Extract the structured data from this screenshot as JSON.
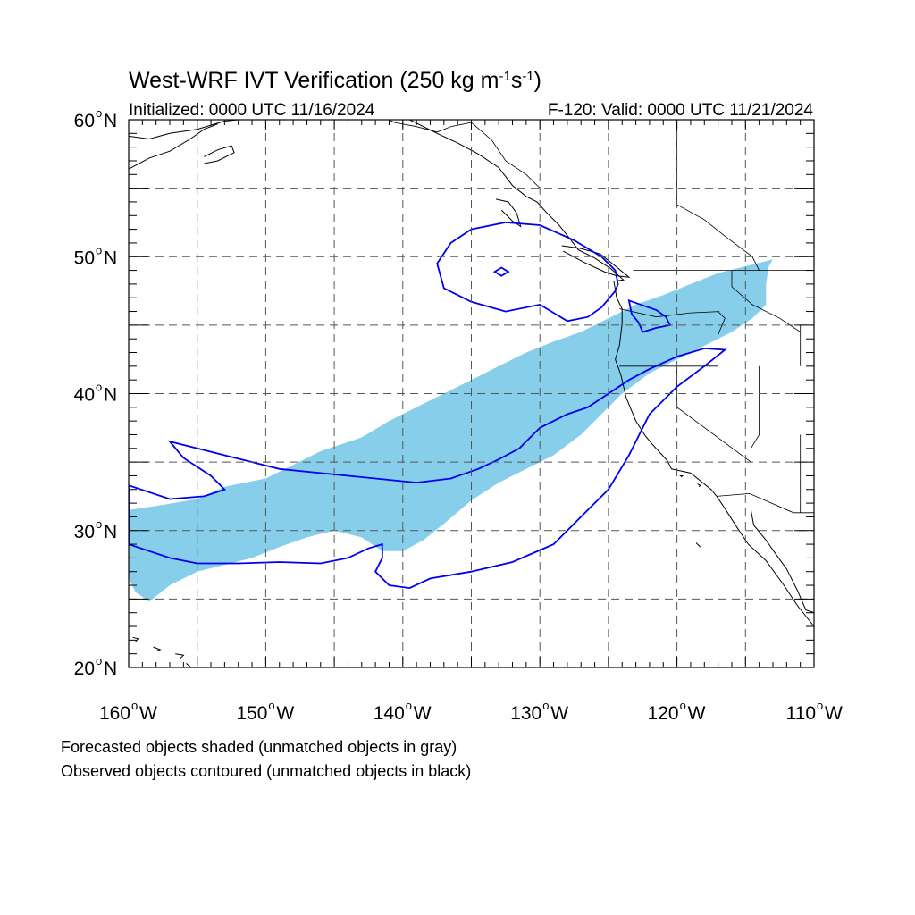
{
  "title": {
    "text": "West-WRF IVT Verification (250 kg m",
    "sup1": "-1",
    "mid": "s",
    "sup2": "-1",
    "end": ")"
  },
  "subtitle_left": "Initialized: 0000 UTC 11/16/2024",
  "subtitle_right": "F-120: Valid: 0000 UTC 11/21/2024",
  "lat_labels": [
    "60",
    "50",
    "40",
    "30",
    "20"
  ],
  "lat_suffix": "N",
  "lon_labels": [
    "160",
    "150",
    "140",
    "130",
    "120",
    "110"
  ],
  "lon_suffix": "W",
  "degree_symbol": "o",
  "caption_line1": "Forecasted objects shaded (unmatched objects in gray)",
  "caption_line2": "Observed objects contoured (unmatched objects in black)",
  "colors": {
    "forecast_fill": "#87ceeb",
    "observed_contour": "#0000ee",
    "grid": "#555555",
    "coastline": "#000000"
  },
  "map": {
    "projection": "equirectangular",
    "lon_range": [
      -160,
      -110
    ],
    "lat_range": [
      20,
      60
    ],
    "grid_spacing_deg": 5,
    "forecast_object": [
      [
        -160,
        31.5
      ],
      [
        -158,
        31.8
      ],
      [
        -155,
        32.3
      ],
      [
        -153,
        33.2
      ],
      [
        -150,
        33.8
      ],
      [
        -148,
        34.8
      ],
      [
        -146,
        35.8
      ],
      [
        -143,
        36.8
      ],
      [
        -141,
        38
      ],
      [
        -139,
        39
      ],
      [
        -137,
        40
      ],
      [
        -135,
        41
      ],
      [
        -133,
        42
      ],
      [
        -131,
        43
      ],
      [
        -129,
        43.8
      ],
      [
        -127,
        44.5
      ],
      [
        -125,
        45.5
      ],
      [
        -123,
        46.5
      ],
      [
        -121,
        47.2
      ],
      [
        -119,
        48
      ],
      [
        -117,
        48.8
      ],
      [
        -115,
        49.3
      ],
      [
        -113,
        49.8
      ],
      [
        -113.3,
        49.3
      ],
      [
        -113.5,
        48
      ],
      [
        -113.5,
        46.5
      ],
      [
        -114.5,
        45.5
      ],
      [
        -116,
        44.5
      ],
      [
        -118,
        43.5
      ],
      [
        -120,
        42.5
      ],
      [
        -122,
        41.5
      ],
      [
        -124,
        40
      ],
      [
        -125.5,
        38.5
      ],
      [
        -127,
        37
      ],
      [
        -129,
        35.5
      ],
      [
        -131,
        34.5
      ],
      [
        -133,
        33.5
      ],
      [
        -135,
        32.2
      ],
      [
        -137,
        30.5
      ],
      [
        -138.5,
        29.3
      ],
      [
        -140,
        28.5
      ],
      [
        -141.5,
        28.5
      ],
      [
        -143,
        29.5
      ],
      [
        -145,
        30
      ],
      [
        -147,
        29.5
      ],
      [
        -149,
        28.8
      ],
      [
        -151,
        28
      ],
      [
        -153,
        27.5
      ],
      [
        -155,
        27
      ],
      [
        -157,
        26
      ],
      [
        -158.5,
        24.8
      ],
      [
        -159.5,
        25.5
      ],
      [
        -160,
        26.5
      ]
    ],
    "observed_contours": [
      [
        [
          -160,
          29
        ],
        [
          -157,
          28
        ],
        [
          -155,
          27.6
        ],
        [
          -152,
          27.6
        ],
        [
          -149,
          27.7
        ],
        [
          -146,
          27.6
        ],
        [
          -144,
          28
        ],
        [
          -142.5,
          28.7
        ],
        [
          -141.5,
          29
        ],
        [
          -141.5,
          28
        ],
        [
          -142,
          27
        ],
        [
          -141,
          26
        ],
        [
          -139.5,
          25.8
        ],
        [
          -138,
          26.5
        ],
        [
          -135,
          27
        ],
        [
          -132,
          27.7
        ],
        [
          -129,
          29
        ],
        [
          -127,
          31
        ],
        [
          -125,
          33
        ],
        [
          -123.5,
          35.5
        ],
        [
          -122,
          38.5
        ],
        [
          -120,
          40.5
        ],
        [
          -118,
          42
        ],
        [
          -116.5,
          43.2
        ],
        [
          -118,
          43.3
        ],
        [
          -120,
          42.7
        ],
        [
          -122,
          41.8
        ],
        [
          -123.5,
          41
        ],
        [
          -125,
          40
        ],
        [
          -126.5,
          39
        ],
        [
          -128,
          38.5
        ],
        [
          -130,
          37.5
        ],
        [
          -131.5,
          36
        ],
        [
          -133,
          35.2
        ],
        [
          -134.5,
          34.5
        ],
        [
          -136.5,
          33.8
        ],
        [
          -139,
          33.5
        ],
        [
          -142,
          33.8
        ],
        [
          -146,
          34.2
        ],
        [
          -149,
          34.5
        ],
        [
          -151,
          35
        ],
        [
          -153,
          35.5
        ],
        [
          -155,
          36
        ],
        [
          -157,
          36.5
        ],
        [
          -156,
          35.3
        ],
        [
          -154,
          34
        ],
        [
          -153,
          33
        ],
        [
          -154.5,
          32.5
        ],
        [
          -157,
          32.3
        ],
        [
          -160,
          33.3
        ]
      ],
      [
        [
          -123.5,
          46.8
        ],
        [
          -121.5,
          46.1
        ],
        [
          -120.8,
          45.6
        ],
        [
          -120.5,
          45
        ],
        [
          -121.5,
          44.8
        ],
        [
          -122.5,
          44.5
        ],
        [
          -122.8,
          45.2
        ],
        [
          -123.3,
          45.8
        ]
      ],
      [
        [
          -124.5,
          47.5
        ],
        [
          -125.5,
          46.3
        ],
        [
          -126.5,
          45.6
        ],
        [
          -128,
          45.3
        ],
        [
          -130,
          46.5
        ],
        [
          -132.5,
          46
        ],
        [
          -135,
          46.7
        ],
        [
          -137,
          47.7
        ],
        [
          -137.5,
          49.5
        ],
        [
          -136.5,
          51
        ],
        [
          -135,
          52
        ],
        [
          -132.5,
          52.5
        ],
        [
          -130,
          52.3
        ],
        [
          -127.5,
          51.2
        ],
        [
          -125.5,
          50
        ],
        [
          -124.5,
          49
        ],
        [
          -124.3,
          48
        ]
      ],
      [
        [
          -133.3,
          48.9
        ],
        [
          -132.8,
          49.2
        ],
        [
          -132.3,
          48.9
        ],
        [
          -132.8,
          48.6
        ]
      ]
    ],
    "coastlines": [
      [
        [
          -160,
          58.8
        ],
        [
          -158.5,
          58.6
        ],
        [
          -157,
          59
        ],
        [
          -155,
          59.3
        ],
        [
          -154,
          59.6
        ],
        [
          -153,
          59.9
        ],
        [
          -152,
          60
        ]
      ],
      [
        [
          -160,
          56.4
        ],
        [
          -158.5,
          57.2
        ],
        [
          -157,
          57.7
        ],
        [
          -155.5,
          58.6
        ],
        [
          -154.5,
          59.3
        ],
        [
          -153.5,
          59.7
        ]
      ],
      [
        [
          -154.5,
          57.3
        ],
        [
          -153.5,
          57.8
        ],
        [
          -152.5,
          58.1
        ],
        [
          -152.3,
          57.6
        ],
        [
          -153.5,
          57
        ],
        [
          -154.5,
          56.8
        ]
      ],
      [
        [
          -139.5,
          60
        ],
        [
          -137.5,
          59
        ],
        [
          -136,
          58.3
        ],
        [
          -134.5,
          57.5
        ],
        [
          -133,
          56.5
        ],
        [
          -132,
          55.2
        ],
        [
          -131,
          54.4
        ],
        [
          -130.2,
          54
        ],
        [
          -129.5,
          53.2
        ],
        [
          -128.6,
          52.3
        ],
        [
          -127.8,
          51.3
        ],
        [
          -127.2,
          50.5
        ],
        [
          -126,
          49.9
        ],
        [
          -124.8,
          49.1
        ],
        [
          -123.9,
          48.3
        ],
        [
          -124.6,
          48.2
        ],
        [
          -124.4,
          47
        ],
        [
          -124,
          46.2
        ],
        [
          -124,
          45.1
        ],
        [
          -124.2,
          43.5
        ],
        [
          -124.5,
          42.5
        ],
        [
          -124.1,
          41.4
        ],
        [
          -123.7,
          39.7
        ],
        [
          -123,
          38
        ],
        [
          -122.3,
          36.9
        ],
        [
          -121.8,
          36.3
        ],
        [
          -120.7,
          35.1
        ],
        [
          -120.4,
          34.5
        ],
        [
          -119,
          34.2
        ],
        [
          -117.5,
          33
        ],
        [
          -117.1,
          32.5
        ],
        [
          -116.5,
          31.6
        ],
        [
          -115.6,
          30.2
        ],
        [
          -114.8,
          29
        ],
        [
          -113.5,
          27.8
        ],
        [
          -112.2,
          26
        ],
        [
          -111.2,
          24.5
        ],
        [
          -110,
          23
        ]
      ],
      [
        [
          -114.6,
          31.5
        ],
        [
          -114.4,
          30.4
        ],
        [
          -113.5,
          29.3
        ],
        [
          -112.8,
          28.3
        ],
        [
          -112,
          27.2
        ],
        [
          -111.2,
          25.6
        ],
        [
          -110.6,
          24.2
        ],
        [
          -110,
          24
        ]
      ],
      [
        [
          -128.4,
          50.8
        ],
        [
          -127,
          50.6
        ],
        [
          -125.6,
          50.2
        ],
        [
          -124.6,
          49.4
        ],
        [
          -123.5,
          48.5
        ],
        [
          -124.4,
          48.6
        ],
        [
          -125.3,
          48.9
        ],
        [
          -126.8,
          49.6
        ],
        [
          -128.3,
          50.4
        ]
      ],
      [
        [
          -133.2,
          54.2
        ],
        [
          -132.3,
          54
        ],
        [
          -131.7,
          53.2
        ],
        [
          -131.4,
          52.2
        ],
        [
          -132,
          52.6
        ],
        [
          -132.8,
          53.4
        ]
      ],
      [
        [
          -155.8,
          20.3
        ],
        [
          -155.1,
          19.7
        ],
        [
          -155.5,
          19.1
        ],
        [
          -156,
          19.7
        ]
      ],
      [
        [
          -156.6,
          21
        ],
        [
          -156,
          20.9
        ],
        [
          -156.3,
          20.6
        ]
      ],
      [
        [
          -158.2,
          21.5
        ],
        [
          -157.7,
          21.3
        ],
        [
          -158,
          21.2
        ]
      ],
      [
        [
          -159.7,
          22.2
        ],
        [
          -159.3,
          22.1
        ],
        [
          -159.5,
          21.9
        ]
      ],
      [
        [
          -119.8,
          34
        ],
        [
          -119.6,
          34
        ],
        [
          -119.7,
          33.9
        ]
      ],
      [
        [
          -118.5,
          33.4
        ],
        [
          -118.3,
          33.3
        ],
        [
          -118.4,
          33.2
        ]
      ],
      [
        [
          -118.6,
          29.1
        ],
        [
          -118.3,
          28.8
        ]
      ]
    ],
    "borders": [
      [
        [
          -141,
          60
        ],
        [
          -140.6,
          59.8
        ],
        [
          -139,
          59.5
        ],
        [
          -137.5,
          59.1
        ],
        [
          -136.5,
          59.5
        ],
        [
          -135,
          59.8
        ],
        [
          -133.5,
          58.5
        ],
        [
          -132.5,
          57
        ],
        [
          -131,
          56
        ],
        [
          -130,
          55
        ]
      ],
      [
        [
          -123.2,
          49
        ],
        [
          -110,
          49
        ]
      ],
      [
        [
          -124.2,
          46.2
        ],
        [
          -121.5,
          45.6
        ],
        [
          -119,
          45.9
        ],
        [
          -116.9,
          46
        ]
      ],
      [
        [
          -124.2,
          42
        ],
        [
          -117,
          42
        ]
      ],
      [
        [
          -120,
          42
        ],
        [
          -120,
          39
        ],
        [
          -114.6,
          35
        ]
      ],
      [
        [
          -117.1,
          32.5
        ],
        [
          -114.7,
          32.7
        ],
        [
          -111.5,
          31.3
        ],
        [
          -110,
          31.3
        ]
      ],
      [
        [
          -117,
          49
        ],
        [
          -117,
          46
        ],
        [
          -116.5,
          45.5
        ],
        [
          -117,
          44.3
        ]
      ],
      [
        [
          -114,
          42
        ],
        [
          -114,
          37
        ],
        [
          -114.6,
          36
        ]
      ],
      [
        [
          -111,
          42
        ],
        [
          -111,
          45
        ],
        [
          -110,
          45
        ]
      ],
      [
        [
          -116,
          49
        ],
        [
          -116,
          47.8
        ],
        [
          -114.5,
          46.5
        ],
        [
          -112.5,
          45.5
        ],
        [
          -111,
          44.5
        ]
      ],
      [
        [
          -120,
          60
        ],
        [
          -120,
          53.8
        ],
        [
          -118,
          52.7
        ],
        [
          -116.5,
          51.5
        ],
        [
          -114.5,
          50
        ],
        [
          -114,
          49
        ]
      ],
      [
        [
          -115,
          60
        ],
        [
          -115,
          60
        ]
      ],
      [
        [
          -111,
          37
        ],
        [
          -111,
          31.3
        ]
      ]
    ]
  }
}
